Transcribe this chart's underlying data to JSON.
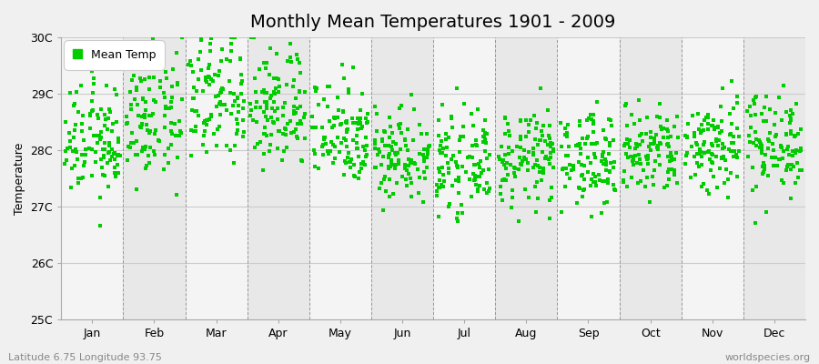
{
  "title": "Monthly Mean Temperatures 1901 - 2009",
  "ylabel": "Temperature",
  "ylim": [
    25.0,
    30.0
  ],
  "yticks": [
    25,
    26,
    27,
    28,
    29,
    30
  ],
  "ytick_labels": [
    "25C",
    "26C",
    "27C",
    "28C",
    "29C",
    "30C"
  ],
  "months": [
    "Jan",
    "Feb",
    "Mar",
    "Apr",
    "May",
    "Jun",
    "Jul",
    "Aug",
    "Sep",
    "Oct",
    "Nov",
    "Dec"
  ],
  "month_means": [
    28.15,
    28.55,
    28.9,
    28.75,
    28.35,
    27.95,
    27.75,
    27.85,
    27.85,
    27.95,
    28.1,
    28.15
  ],
  "month_stds": [
    0.5,
    0.55,
    0.6,
    0.55,
    0.48,
    0.42,
    0.4,
    0.42,
    0.42,
    0.42,
    0.45,
    0.45
  ],
  "n_points": 109,
  "marker_color": "#00cc00",
  "marker_size": 2.5,
  "bg_color": "#f0f0f0",
  "band_color_even": "#e8e8e8",
  "band_color_odd": "#f4f4f4",
  "dashed_line_color": "#999999",
  "legend_label": "Mean Temp",
  "footer_left": "Latitude 6.75 Longitude 93.75",
  "footer_right": "worldspecies.org",
  "title_fontsize": 14,
  "axis_label_fontsize": 9,
  "tick_fontsize": 9,
  "footer_fontsize": 8
}
